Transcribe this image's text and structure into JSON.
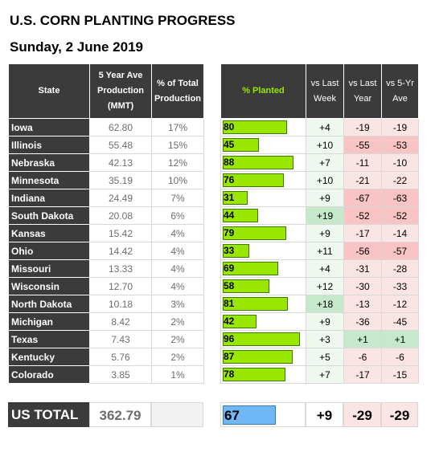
{
  "title": "U.S. CORN PLANTING PROGRESS",
  "subtitle": "Sunday, 2 June 2019",
  "headers": {
    "state": "State",
    "production": "5 Year Ave Production (MMT)",
    "pct_total": "% of Total Production",
    "planted": "% Planted",
    "vs_last_week": "vs Last Week",
    "vs_last_year": "vs Last Year",
    "vs_5yr": "vs 5-Yr Ave"
  },
  "rows": [
    {
      "state": "Iowa",
      "prod": "62.80",
      "pct": "17%",
      "planted": "80",
      "week": "+4",
      "year": "-19",
      "ave": "-19"
    },
    {
      "state": "Illinois",
      "prod": "55.48",
      "pct": "15%",
      "planted": "45",
      "week": "+10",
      "year": "-55",
      "ave": "-53"
    },
    {
      "state": "Nebraska",
      "prod": "42.13",
      "pct": "12%",
      "planted": "88",
      "week": "+7",
      "year": "-11",
      "ave": "-10"
    },
    {
      "state": "Minnesota",
      "prod": "35.19",
      "pct": "10%",
      "planted": "76",
      "week": "+10",
      "year": "-21",
      "ave": "-22"
    },
    {
      "state": "Indiana",
      "prod": "24.49",
      "pct": "7%",
      "planted": "31",
      "week": "+9",
      "year": "-67",
      "ave": "-63"
    },
    {
      "state": "South Dakota",
      "prod": "20.08",
      "pct": "6%",
      "planted": "44",
      "week": "+19",
      "year": "-52",
      "ave": "-52"
    },
    {
      "state": "Kansas",
      "prod": "15.42",
      "pct": "4%",
      "planted": "79",
      "week": "+9",
      "year": "-17",
      "ave": "-14"
    },
    {
      "state": "Ohio",
      "prod": "14.42",
      "pct": "4%",
      "planted": "33",
      "week": "+11",
      "year": "-56",
      "ave": "-57"
    },
    {
      "state": "Missouri",
      "prod": "13.33",
      "pct": "4%",
      "planted": "69",
      "week": "+4",
      "year": "-31",
      "ave": "-28"
    },
    {
      "state": "Wisconsin",
      "prod": "12.70",
      "pct": "4%",
      "planted": "58",
      "week": "+12",
      "year": "-30",
      "ave": "-33"
    },
    {
      "state": "North Dakota",
      "prod": "10.18",
      "pct": "3%",
      "planted": "81",
      "week": "+18",
      "year": "-13",
      "ave": "-12"
    },
    {
      "state": "Michigan",
      "prod": "8.42",
      "pct": "2%",
      "planted": "42",
      "week": "+9",
      "year": "-36",
      "ave": "-45"
    },
    {
      "state": "Texas",
      "prod": "7.43",
      "pct": "2%",
      "planted": "96",
      "week": "+3",
      "year": "+1",
      "ave": "+1"
    },
    {
      "state": "Kentucky",
      "prod": "5.76",
      "pct": "2%",
      "planted": "87",
      "week": "+5",
      "year": "-6",
      "ave": "-6"
    },
    {
      "state": "Colorado",
      "prod": "3.85",
      "pct": "1%",
      "planted": "78",
      "week": "+7",
      "year": "-17",
      "ave": "-15"
    }
  ],
  "total": {
    "label": "US TOTAL",
    "prod": "362.79",
    "planted": "67",
    "week": "+9",
    "year": "-29",
    "ave": "-29"
  },
  "colors": {
    "header": "#3b3b3b",
    "planted_bar": "#99e600",
    "total_bar": "#6fb7f5",
    "planted_header_text": "#99e600"
  }
}
